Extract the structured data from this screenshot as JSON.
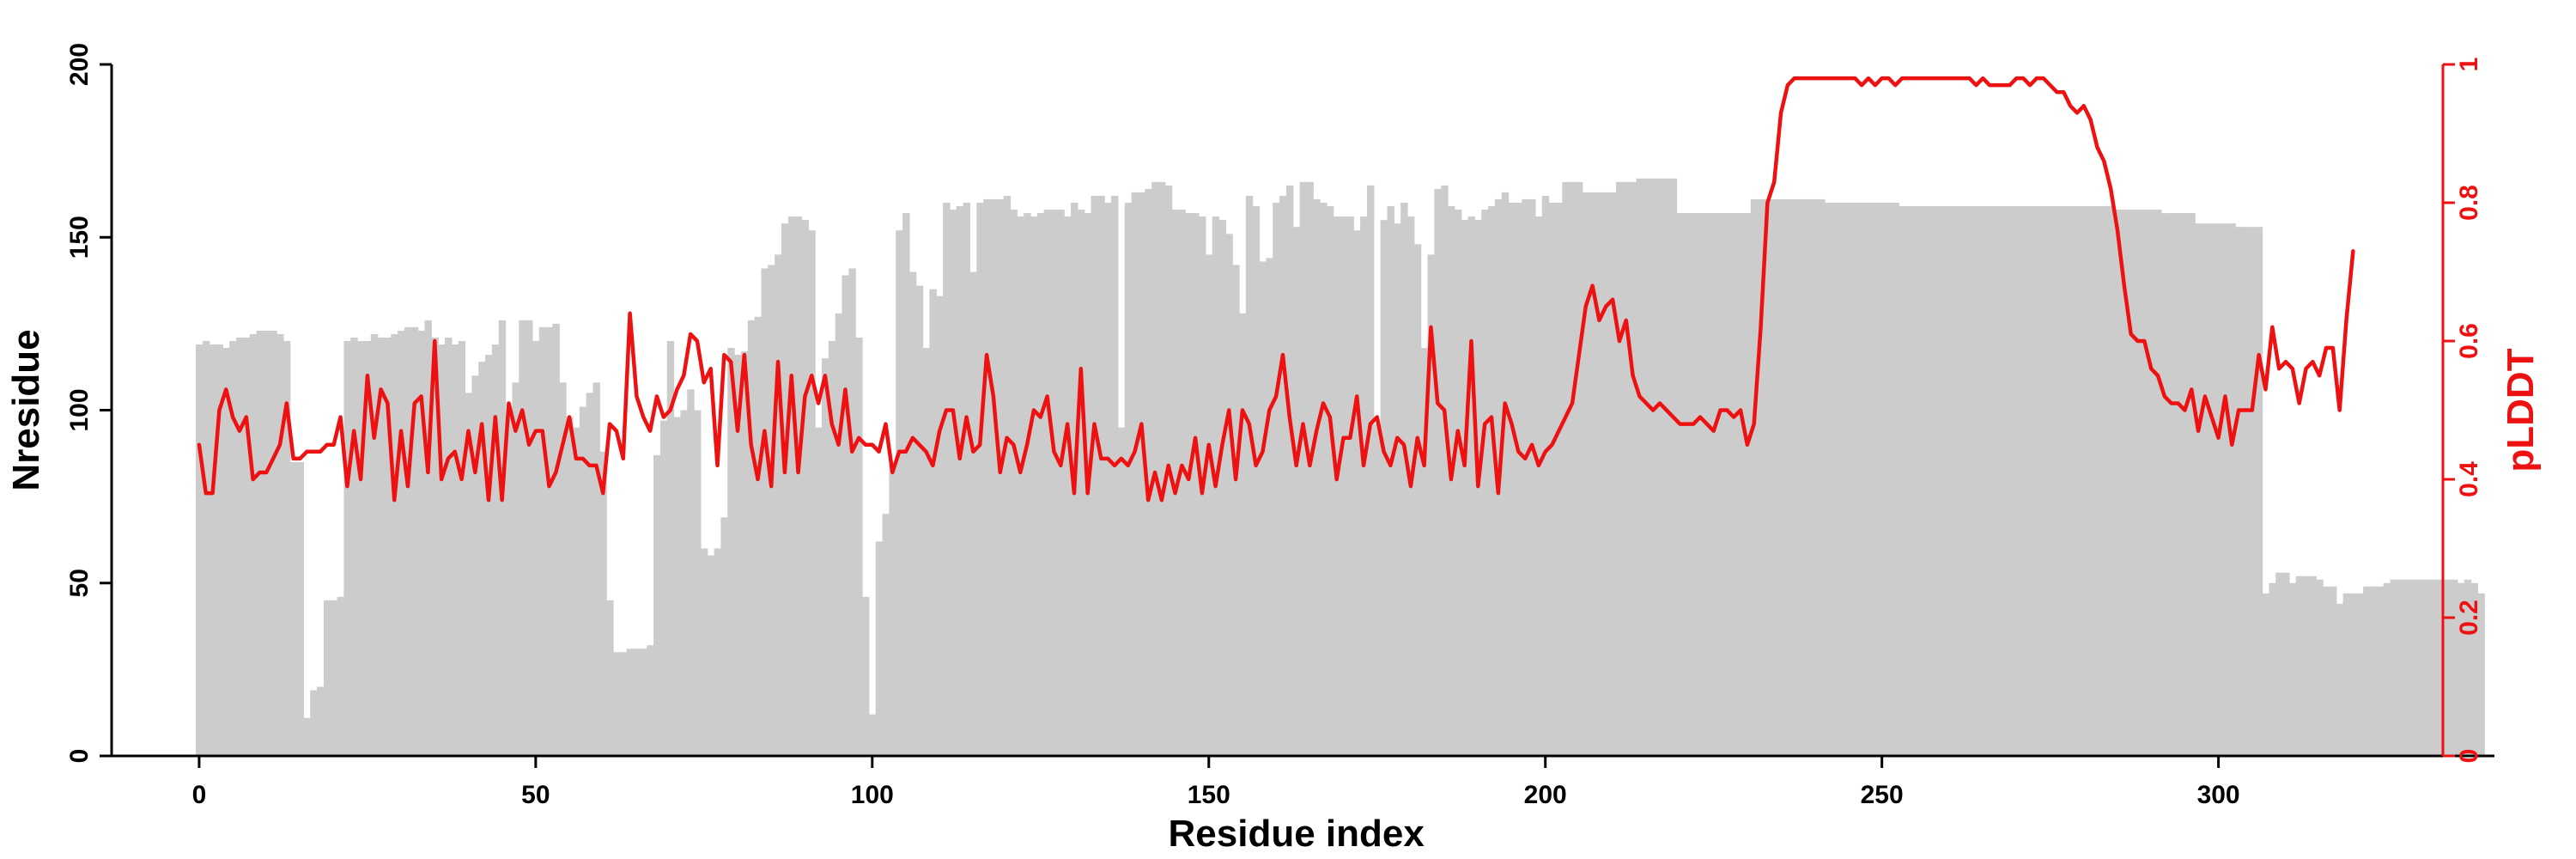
{
  "chart_data": {
    "type": "bar+line",
    "xlabel": "Residue index",
    "ylabel": "Nresidue",
    "y2label": "pLDDT",
    "xlim": [
      -13,
      341
    ],
    "ylim": [
      0,
      200
    ],
    "y2lim": [
      0,
      1
    ],
    "xticks": [
      "0",
      "50",
      "100",
      "150",
      "200",
      "250",
      "300"
    ],
    "yticks": [
      "0",
      "50",
      "100",
      "150",
      "200"
    ],
    "y2ticks": [
      "0",
      "0.2",
      "0.4",
      "0.6",
      "0.8",
      "1"
    ],
    "grid": false,
    "colors": {
      "bars": "#cccccc",
      "line": "#ee1111",
      "left_axis": "#000000",
      "right_axis": "#ee1111"
    },
    "bar_series": {
      "name": "Nresidue",
      "x_start": 0,
      "values": [
        119,
        120,
        119,
        119,
        118,
        120,
        121,
        121,
        122,
        123,
        123,
        123,
        122,
        120,
        85,
        85,
        11,
        19,
        20,
        45,
        45,
        46,
        120,
        121,
        120,
        120,
        122,
        121,
        121,
        122,
        123,
        124,
        124,
        123,
        126,
        121,
        119,
        121,
        119,
        120,
        105,
        110,
        114,
        116,
        119,
        126,
        98,
        108,
        126,
        126,
        120,
        124,
        124,
        125,
        108,
        98,
        95,
        101,
        105,
        108,
        88,
        45,
        30,
        30,
        31,
        31,
        31,
        32,
        87,
        97,
        120,
        98,
        100,
        106,
        100,
        60,
        58,
        60,
        69,
        118,
        116,
        117,
        126,
        127,
        141,
        142,
        145,
        154,
        156,
        156,
        155,
        152,
        95,
        115,
        120,
        128,
        139,
        141,
        121,
        46,
        12,
        62,
        70,
        84,
        152,
        157,
        140,
        136,
        118,
        135,
        133,
        160,
        158,
        159,
        160,
        140,
        160,
        161,
        161,
        161,
        162,
        158,
        156,
        157,
        156,
        157,
        158,
        158,
        158,
        156,
        160,
        158,
        157,
        162,
        162,
        160,
        162,
        95,
        160,
        163,
        163,
        164,
        166,
        166,
        165,
        158,
        158,
        157,
        157,
        156,
        145,
        156,
        155,
        151,
        142,
        128,
        162,
        159,
        143,
        144,
        160,
        162,
        165,
        153,
        166,
        166,
        161,
        160,
        159,
        156,
        156,
        156,
        152,
        156,
        165,
        96,
        155,
        159,
        154,
        160,
        156,
        148,
        118,
        145,
        164,
        165,
        159,
        158,
        155,
        156,
        155,
        158,
        159,
        161,
        163,
        160,
        160,
        161,
        161,
        156,
        162,
        160,
        160,
        166,
        166,
        166,
        163,
        163,
        163,
        163,
        163,
        166,
        166,
        166,
        167,
        167,
        167,
        167,
        167,
        167,
        157,
        157,
        157,
        157,
        157,
        157,
        157,
        157,
        157,
        157,
        157,
        161,
        161,
        161,
        161,
        161,
        161,
        161,
        161,
        161,
        161,
        161,
        160,
        160,
        160,
        160,
        160,
        160,
        160,
        160,
        160,
        160,
        160,
        159,
        159,
        159,
        159,
        159,
        159,
        159,
        159,
        159,
        159,
        159,
        159,
        159,
        159,
        159,
        159,
        159,
        159,
        159,
        159,
        159,
        159,
        159,
        159,
        159,
        159,
        159,
        159,
        159,
        159,
        159,
        159,
        158,
        158,
        158,
        158,
        158,
        158,
        158,
        157,
        157,
        157,
        157,
        157,
        154,
        154,
        154,
        154,
        154,
        154,
        153,
        153,
        153,
        153,
        47,
        50,
        53,
        53,
        50,
        52,
        52,
        52,
        51,
        49,
        49,
        44,
        47,
        47,
        47,
        49,
        49,
        49,
        50,
        51,
        51,
        51,
        51,
        51,
        51,
        51,
        51,
        51,
        51,
        50,
        51,
        50,
        47
      ]
    },
    "line_series": {
      "name": "pLDDT",
      "x_start": 0,
      "values": [
        0.45,
        0.38,
        0.38,
        0.5,
        0.53,
        0.49,
        0.47,
        0.49,
        0.4,
        0.41,
        0.41,
        0.43,
        0.45,
        0.51,
        0.43,
        0.43,
        0.44,
        0.44,
        0.44,
        0.45,
        0.45,
        0.49,
        0.39,
        0.47,
        0.4,
        0.55,
        0.46,
        0.53,
        0.51,
        0.37,
        0.47,
        0.39,
        0.51,
        0.52,
        0.41,
        0.6,
        0.4,
        0.43,
        0.44,
        0.4,
        0.47,
        0.41,
        0.48,
        0.37,
        0.49,
        0.37,
        0.51,
        0.47,
        0.5,
        0.45,
        0.47,
        0.47,
        0.39,
        0.41,
        0.45,
        0.49,
        0.43,
        0.43,
        0.42,
        0.42,
        0.38,
        0.48,
        0.47,
        0.43,
        0.64,
        0.52,
        0.49,
        0.47,
        0.52,
        0.49,
        0.5,
        0.53,
        0.55,
        0.61,
        0.6,
        0.54,
        0.56,
        0.42,
        0.58,
        0.57,
        0.47,
        0.58,
        0.45,
        0.4,
        0.47,
        0.39,
        0.57,
        0.41,
        0.55,
        0.41,
        0.52,
        0.55,
        0.51,
        0.55,
        0.48,
        0.45,
        0.53,
        0.44,
        0.46,
        0.45,
        0.45,
        0.44,
        0.48,
        0.41,
        0.44,
        0.44,
        0.46,
        0.45,
        0.44,
        0.42,
        0.47,
        0.5,
        0.5,
        0.43,
        0.49,
        0.44,
        0.45,
        0.58,
        0.52,
        0.41,
        0.46,
        0.45,
        0.41,
        0.45,
        0.5,
        0.49,
        0.52,
        0.44,
        0.42,
        0.48,
        0.38,
        0.56,
        0.38,
        0.48,
        0.43,
        0.43,
        0.42,
        0.43,
        0.42,
        0.44,
        0.48,
        0.37,
        0.41,
        0.37,
        0.42,
        0.38,
        0.42,
        0.4,
        0.46,
        0.38,
        0.45,
        0.39,
        0.45,
        0.5,
        0.4,
        0.5,
        0.48,
        0.42,
        0.44,
        0.5,
        0.52,
        0.58,
        0.49,
        0.42,
        0.48,
        0.42,
        0.47,
        0.51,
        0.49,
        0.4,
        0.46,
        0.46,
        0.52,
        0.42,
        0.48,
        0.49,
        0.44,
        0.42,
        0.46,
        0.45,
        0.39,
        0.46,
        0.42,
        0.62,
        0.51,
        0.5,
        0.4,
        0.47,
        0.42,
        0.6,
        0.39,
        0.48,
        0.49,
        0.38,
        0.51,
        0.48,
        0.44,
        0.43,
        0.45,
        0.42,
        0.44,
        0.45,
        0.47,
        0.49,
        0.51,
        0.58,
        0.65,
        0.68,
        0.63,
        0.65,
        0.66,
        0.6,
        0.63,
        0.55,
        0.52,
        0.51,
        0.5,
        0.51,
        0.5,
        0.49,
        0.48,
        0.48,
        0.48,
        0.49,
        0.48,
        0.47,
        0.5,
        0.5,
        0.49,
        0.5,
        0.45,
        0.48,
        0.62,
        0.8,
        0.83,
        0.93,
        0.97,
        0.98,
        0.98,
        0.98,
        0.98,
        0.98,
        0.98,
        0.98,
        0.98,
        0.98,
        0.98,
        0.97,
        0.98,
        0.97,
        0.98,
        0.98,
        0.97,
        0.98,
        0.98,
        0.98,
        0.98,
        0.98,
        0.98,
        0.98,
        0.98,
        0.98,
        0.98,
        0.98,
        0.97,
        0.98,
        0.97,
        0.97,
        0.97,
        0.97,
        0.98,
        0.98,
        0.97,
        0.98,
        0.98,
        0.97,
        0.96,
        0.96,
        0.94,
        0.93,
        0.94,
        0.92,
        0.88,
        0.86,
        0.82,
        0.76,
        0.68,
        0.61,
        0.6,
        0.6,
        0.56,
        0.55,
        0.52,
        0.51,
        0.51,
        0.5,
        0.53,
        0.47,
        0.52,
        0.49,
        0.46,
        0.52,
        0.45,
        0.5,
        0.5,
        0.5,
        0.58,
        0.53,
        0.62,
        0.56,
        0.57,
        0.56,
        0.51,
        0.56,
        0.57,
        0.55,
        0.59,
        0.59,
        0.5,
        0.63,
        0.73
      ]
    }
  }
}
